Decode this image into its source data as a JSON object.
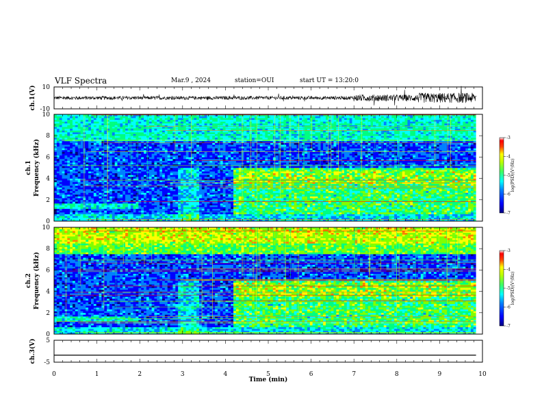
{
  "header": {
    "title": "VLF Spectra",
    "date": "Mar.9 , 2024",
    "station": "station=OUI",
    "start": "start UT = 13:20:0"
  },
  "chart_data": [
    {
      "type": "line",
      "panel": "ch1-waveform",
      "ylabel": "ch.1(V)",
      "ylim": [
        -10,
        10
      ],
      "yticks": [
        "10",
        "-10"
      ],
      "description": "broadband waveform around 0 V, amplitude increasing after ~7 min"
    },
    {
      "type": "heatmap",
      "panel": "ch1-spectrogram",
      "ylabel": "ch.1\nFrequency (kHz)",
      "ylabel_lines": [
        "ch.1",
        "Frequency (kHz)"
      ],
      "ylim": [
        0,
        10
      ],
      "yticks": [
        "0",
        "2",
        "4",
        "6",
        "8",
        "10"
      ],
      "colorbar": {
        "label": "log(PSD)(V²/Hz)",
        "range": [
          -7,
          -3
        ],
        "ticks": [
          "-3",
          "-4",
          "-5",
          "-6",
          "-7"
        ]
      },
      "enhancement_after_min": 4.2
    },
    {
      "type": "heatmap",
      "panel": "ch2-spectrogram",
      "ylabel": "ch.2\nFrequency (kHz)",
      "ylabel_lines": [
        "ch.2",
        "Frequency (kHz)"
      ],
      "ylim": [
        0,
        10
      ],
      "yticks": [
        "0",
        "2",
        "4",
        "6",
        "8",
        "10"
      ],
      "colorbar": {
        "label": "log(PSD)(V²/Hz)",
        "range": [
          -7,
          -3
        ],
        "ticks": [
          "-3",
          "-4",
          "-5",
          "-6",
          "-7"
        ]
      },
      "enhancement_after_min": 4.2
    },
    {
      "type": "line",
      "panel": "ch3-waveform",
      "ylabel": "ch.3(V)",
      "ylim": [
        -5,
        5
      ],
      "yticks": [
        "5",
        "-5"
      ],
      "x": [
        0,
        9.85
      ],
      "y": [
        -1.8,
        -1.8
      ]
    }
  ],
  "xaxis": {
    "label": "Time (min)",
    "range": [
      0,
      10
    ],
    "ticks": [
      "0",
      "1",
      "2",
      "3",
      "4",
      "5",
      "6",
      "7",
      "8",
      "9",
      "10"
    ]
  },
  "colors": {
    "colormap": [
      "#00007f",
      "#0000ff",
      "#0080ff",
      "#00ffff",
      "#00ff80",
      "#80ff00",
      "#ffff00",
      "#ff8000",
      "#ff0000",
      "#ffffff"
    ],
    "background": "#ffffff",
    "ink": "#000000"
  }
}
